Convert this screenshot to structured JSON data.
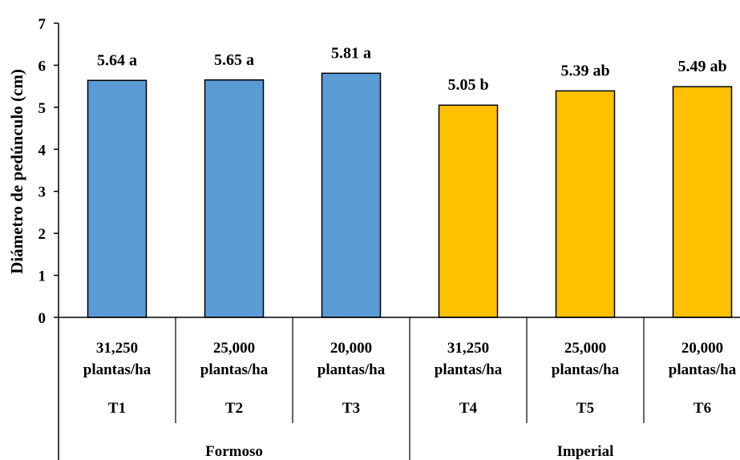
{
  "chart_data": {
    "type": "bar",
    "title": "",
    "ylabel": "Diámetro de pedúnculo (cm)",
    "xlabel": "",
    "ylim": [
      0,
      7
    ],
    "yticks": [
      "0",
      "1",
      "2",
      "3",
      "4",
      "5",
      "6",
      "7"
    ],
    "grid": false,
    "legend": "none",
    "categories": [
      {
        "line1": "31,250",
        "line2": "plantas/ha",
        "code": "T1",
        "group": "Formoso"
      },
      {
        "line1": "25,000",
        "line2": "plantas/ha",
        "code": "T2",
        "group": "Formoso"
      },
      {
        "line1": "20,000",
        "line2": "plantas/ha",
        "code": "T3",
        "group": "Formoso"
      },
      {
        "line1": "31,250",
        "line2": "plantas/ha",
        "code": "T4",
        "group": "Imperial"
      },
      {
        "line1": "25,000",
        "line2": "plantas/ha",
        "code": "T5",
        "group": "Imperial"
      },
      {
        "line1": "20,000",
        "line2": "plantas/ha",
        "code": "T6",
        "group": "Imperial"
      }
    ],
    "values": [
      5.64,
      5.65,
      5.81,
      5.05,
      5.39,
      5.49
    ],
    "data_labels": [
      "5.64 a",
      "5.65 a",
      "5.81 a",
      "5.05 b",
      "5.39 ab",
      "5.49 ab"
    ],
    "groups": [
      "Formoso",
      "Imperial"
    ],
    "group_colors": {
      "Formoso": "#5b9bd5",
      "Imperial": "#ffc000"
    }
  }
}
